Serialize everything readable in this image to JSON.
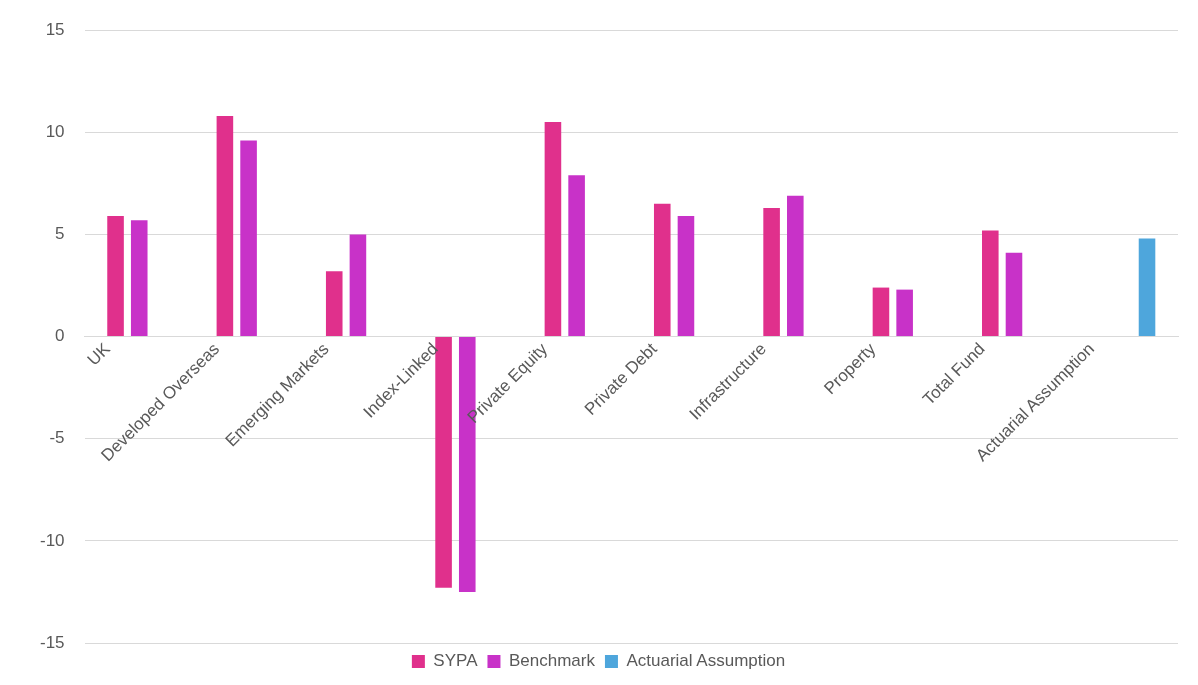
{
  "chart_data": {
    "type": "bar",
    "categories": [
      "UK",
      "Developed Overseas",
      "Emerging Markets",
      "Index-Linked",
      "Private Equity",
      "Private Debt",
      "Infrastructure",
      "Property",
      "Total Fund",
      "Actuarial Assumption"
    ],
    "series": [
      {
        "name": "SYPA",
        "color": "#e0308c",
        "values": [
          5.9,
          10.8,
          3.2,
          -12.3,
          10.5,
          6.5,
          6.3,
          2.4,
          5.2,
          null
        ]
      },
      {
        "name": "Benchmark",
        "color": "#c832c8",
        "values": [
          5.7,
          9.6,
          5.0,
          -12.5,
          7.9,
          5.9,
          6.9,
          2.3,
          4.1,
          null
        ]
      },
      {
        "name": "Actuarial Assumption",
        "color": "#4ea6dc",
        "values": [
          null,
          null,
          null,
          null,
          null,
          null,
          null,
          null,
          null,
          4.8
        ]
      }
    ],
    "ylim": [
      -15,
      15
    ],
    "yticks": [
      -15,
      -10,
      -5,
      0,
      5,
      10,
      15
    ],
    "grid": "y",
    "legend": "bottom"
  }
}
